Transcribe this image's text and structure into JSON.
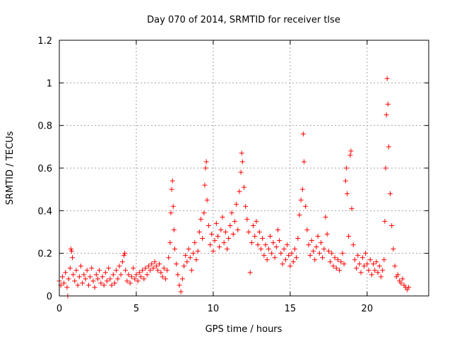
{
  "chart_data": {
    "type": "scatter",
    "title": "Day 070 of 2014, SRMTID for receiver tlse",
    "xlabel": "GPS time / hours",
    "ylabel": "SRMTID / TECUs",
    "xlim": [
      0,
      24
    ],
    "ylim": [
      0,
      1.2
    ],
    "x_ticks": [
      0,
      5,
      10,
      15,
      20
    ],
    "x_tick_labels": [
      "0",
      "5",
      "10",
      "15",
      "20"
    ],
    "y_ticks": [
      0,
      0.2,
      0.4,
      0.6,
      0.8,
      1,
      1.2
    ],
    "y_tick_labels": [
      "0",
      "0.2",
      "0.4",
      "0.6",
      "0.8",
      "1",
      "1.2"
    ],
    "grid": true,
    "marker": "+",
    "color": "#ff0000",
    "series": [
      {
        "name": "SRMTID",
        "points": [
          [
            0.0,
            0.07
          ],
          [
            0.1,
            0.05
          ],
          [
            0.2,
            0.09
          ],
          [
            0.3,
            0.06
          ],
          [
            0.4,
            0.11
          ],
          [
            0.5,
            0.04
          ],
          [
            0.55,
            0.0
          ],
          [
            0.6,
            0.08
          ],
          [
            0.7,
            0.13
          ],
          [
            0.75,
            0.22
          ],
          [
            0.8,
            0.21
          ],
          [
            0.85,
            0.18
          ],
          [
            0.9,
            0.1
          ],
          [
            1.0,
            0.07
          ],
          [
            1.1,
            0.12
          ],
          [
            1.2,
            0.05
          ],
          [
            1.3,
            0.09
          ],
          [
            1.4,
            0.14
          ],
          [
            1.5,
            0.06
          ],
          [
            1.6,
            0.1
          ],
          [
            1.7,
            0.08
          ],
          [
            1.8,
            0.12
          ],
          [
            1.9,
            0.05
          ],
          [
            2.0,
            0.09
          ],
          [
            2.1,
            0.13
          ],
          [
            2.2,
            0.07
          ],
          [
            2.3,
            0.04
          ],
          [
            2.4,
            0.1
          ],
          [
            2.5,
            0.08
          ],
          [
            2.6,
            0.12
          ],
          [
            2.7,
            0.06
          ],
          [
            2.8,
            0.09
          ],
          [
            2.9,
            0.05
          ],
          [
            3.0,
            0.11
          ],
          [
            3.1,
            0.07
          ],
          [
            3.2,
            0.13
          ],
          [
            3.3,
            0.08
          ],
          [
            3.4,
            0.05
          ],
          [
            3.5,
            0.1
          ],
          [
            3.6,
            0.06
          ],
          [
            3.7,
            0.12
          ],
          [
            3.8,
            0.08
          ],
          [
            3.9,
            0.14
          ],
          [
            4.0,
            0.1
          ],
          [
            4.1,
            0.16
          ],
          [
            4.2,
            0.19
          ],
          [
            4.25,
            0.2
          ],
          [
            4.3,
            0.12
          ],
          [
            4.4,
            0.07
          ],
          [
            4.5,
            0.1
          ],
          [
            4.6,
            0.06
          ],
          [
            4.7,
            0.09
          ],
          [
            4.8,
            0.13
          ],
          [
            4.9,
            0.08
          ],
          [
            5.0,
            0.1
          ],
          [
            5.1,
            0.07
          ],
          [
            5.2,
            0.11
          ],
          [
            5.3,
            0.09
          ],
          [
            5.4,
            0.12
          ],
          [
            5.5,
            0.08
          ],
          [
            5.6,
            0.13
          ],
          [
            5.7,
            0.1
          ],
          [
            5.8,
            0.14
          ],
          [
            5.9,
            0.12
          ],
          [
            6.0,
            0.15
          ],
          [
            6.1,
            0.13
          ],
          [
            6.2,
            0.16
          ],
          [
            6.3,
            0.14
          ],
          [
            6.4,
            0.12
          ],
          [
            6.5,
            0.15
          ],
          [
            6.6,
            0.11
          ],
          [
            6.7,
            0.09
          ],
          [
            6.8,
            0.13
          ],
          [
            6.9,
            0.08
          ],
          [
            7.0,
            0.12
          ],
          [
            7.1,
            0.18
          ],
          [
            7.2,
            0.25
          ],
          [
            7.25,
            0.39
          ],
          [
            7.3,
            0.5
          ],
          [
            7.35,
            0.54
          ],
          [
            7.4,
            0.42
          ],
          [
            7.45,
            0.31
          ],
          [
            7.5,
            0.22
          ],
          [
            7.6,
            0.15
          ],
          [
            7.7,
            0.1
          ],
          [
            7.8,
            0.05
          ],
          [
            7.9,
            0.02
          ],
          [
            8.0,
            0.08
          ],
          [
            8.1,
            0.14
          ],
          [
            8.2,
            0.19
          ],
          [
            8.3,
            0.16
          ],
          [
            8.4,
            0.22
          ],
          [
            8.5,
            0.18
          ],
          [
            8.6,
            0.12
          ],
          [
            8.7,
            0.2
          ],
          [
            8.8,
            0.25
          ],
          [
            8.9,
            0.17
          ],
          [
            9.0,
            0.21
          ],
          [
            9.1,
            0.3
          ],
          [
            9.2,
            0.36
          ],
          [
            9.3,
            0.27
          ],
          [
            9.4,
            0.39
          ],
          [
            9.45,
            0.52
          ],
          [
            9.5,
            0.6
          ],
          [
            9.55,
            0.63
          ],
          [
            9.6,
            0.45
          ],
          [
            9.7,
            0.33
          ],
          [
            9.8,
            0.24
          ],
          [
            9.9,
            0.29
          ],
          [
            10.0,
            0.21
          ],
          [
            10.1,
            0.26
          ],
          [
            10.2,
            0.34
          ],
          [
            10.3,
            0.28
          ],
          [
            10.4,
            0.23
          ],
          [
            10.5,
            0.31
          ],
          [
            10.6,
            0.37
          ],
          [
            10.7,
            0.25
          ],
          [
            10.8,
            0.3
          ],
          [
            10.9,
            0.22
          ],
          [
            11.0,
            0.27
          ],
          [
            11.1,
            0.33
          ],
          [
            11.2,
            0.39
          ],
          [
            11.3,
            0.29
          ],
          [
            11.4,
            0.35
          ],
          [
            11.5,
            0.43
          ],
          [
            11.6,
            0.31
          ],
          [
            11.7,
            0.49
          ],
          [
            11.8,
            0.58
          ],
          [
            11.85,
            0.67
          ],
          [
            11.9,
            0.63
          ],
          [
            12.0,
            0.51
          ],
          [
            12.1,
            0.42
          ],
          [
            12.2,
            0.36
          ],
          [
            12.3,
            0.3
          ],
          [
            12.4,
            0.11
          ],
          [
            12.5,
            0.25
          ],
          [
            12.6,
            0.33
          ],
          [
            12.7,
            0.28
          ],
          [
            12.8,
            0.35
          ],
          [
            12.9,
            0.24
          ],
          [
            13.0,
            0.3
          ],
          [
            13.1,
            0.22
          ],
          [
            13.2,
            0.27
          ],
          [
            13.3,
            0.19
          ],
          [
            13.4,
            0.24
          ],
          [
            13.5,
            0.17
          ],
          [
            13.6,
            0.22
          ],
          [
            13.7,
            0.28
          ],
          [
            13.8,
            0.2
          ],
          [
            13.9,
            0.25
          ],
          [
            14.0,
            0.18
          ],
          [
            14.1,
            0.23
          ],
          [
            14.2,
            0.31
          ],
          [
            14.3,
            0.26
          ],
          [
            14.4,
            0.2
          ],
          [
            14.5,
            0.15
          ],
          [
            14.6,
            0.22
          ],
          [
            14.7,
            0.17
          ],
          [
            14.8,
            0.24
          ],
          [
            14.9,
            0.19
          ],
          [
            15.0,
            0.14
          ],
          [
            15.1,
            0.2
          ],
          [
            15.2,
            0.16
          ],
          [
            15.3,
            0.22
          ],
          [
            15.4,
            0.18
          ],
          [
            15.5,
            0.27
          ],
          [
            15.6,
            0.38
          ],
          [
            15.7,
            0.45
          ],
          [
            15.8,
            0.5
          ],
          [
            15.85,
            0.76
          ],
          [
            15.9,
            0.63
          ],
          [
            16.0,
            0.42
          ],
          [
            16.1,
            0.31
          ],
          [
            16.2,
            0.24
          ],
          [
            16.3,
            0.19
          ],
          [
            16.4,
            0.26
          ],
          [
            16.5,
            0.21
          ],
          [
            16.6,
            0.17
          ],
          [
            16.7,
            0.23
          ],
          [
            16.8,
            0.28
          ],
          [
            16.9,
            0.2
          ],
          [
            17.0,
            0.25
          ],
          [
            17.1,
            0.18
          ],
          [
            17.2,
            0.22
          ],
          [
            17.3,
            0.37
          ],
          [
            17.4,
            0.29
          ],
          [
            17.5,
            0.21
          ],
          [
            17.6,
            0.16
          ],
          [
            17.7,
            0.2
          ],
          [
            17.8,
            0.14
          ],
          [
            17.9,
            0.18
          ],
          [
            18.0,
            0.13
          ],
          [
            18.1,
            0.17
          ],
          [
            18.2,
            0.12
          ],
          [
            18.3,
            0.16
          ],
          [
            18.4,
            0.2
          ],
          [
            18.5,
            0.15
          ],
          [
            18.6,
            0.54
          ],
          [
            18.65,
            0.6
          ],
          [
            18.7,
            0.48
          ],
          [
            18.8,
            0.28
          ],
          [
            18.9,
            0.66
          ],
          [
            18.95,
            0.68
          ],
          [
            19.0,
            0.41
          ],
          [
            19.1,
            0.24
          ],
          [
            19.2,
            0.17
          ],
          [
            19.3,
            0.13
          ],
          [
            19.4,
            0.19
          ],
          [
            19.5,
            0.15
          ],
          [
            19.6,
            0.11
          ],
          [
            19.7,
            0.18
          ],
          [
            19.8,
            0.14
          ],
          [
            19.9,
            0.2
          ],
          [
            20.0,
            0.15
          ],
          [
            20.1,
            0.12
          ],
          [
            20.2,
            0.17
          ],
          [
            20.3,
            0.1
          ],
          [
            20.4,
            0.15
          ],
          [
            20.5,
            0.12
          ],
          [
            20.6,
            0.16
          ],
          [
            20.7,
            0.11
          ],
          [
            20.8,
            0.14
          ],
          [
            20.9,
            0.09
          ],
          [
            21.0,
            0.12
          ],
          [
            21.1,
            0.17
          ],
          [
            21.15,
            0.35
          ],
          [
            21.2,
            0.6
          ],
          [
            21.25,
            0.85
          ],
          [
            21.3,
            1.02
          ],
          [
            21.35,
            0.9
          ],
          [
            21.4,
            0.7
          ],
          [
            21.5,
            0.48
          ],
          [
            21.6,
            0.33
          ],
          [
            21.7,
            0.22
          ],
          [
            21.8,
            0.14
          ],
          [
            21.9,
            0.09
          ],
          [
            22.0,
            0.1
          ],
          [
            22.1,
            0.07
          ],
          [
            22.2,
            0.06
          ],
          [
            22.3,
            0.08
          ],
          [
            22.4,
            0.05
          ],
          [
            22.5,
            0.04
          ],
          [
            22.6,
            0.03
          ],
          [
            22.7,
            0.04
          ]
        ]
      }
    ]
  }
}
